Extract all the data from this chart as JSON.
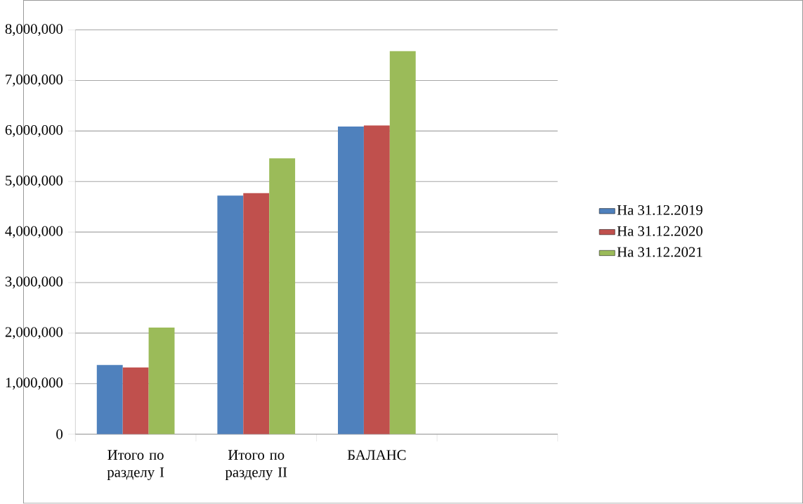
{
  "chart_data": {
    "type": "bar",
    "categories": [
      "Итого по разделу I",
      "Итого по разделу II",
      "БАЛАНС",
      null
    ],
    "series": [
      {
        "name": "На 31.12.2019",
        "color": "#4f81bd",
        "values": [
          1370000,
          4720000,
          6090000,
          null
        ]
      },
      {
        "name": "На 31.12.2020",
        "color": "#c0504d",
        "values": [
          1320000,
          4770000,
          6110000,
          null
        ]
      },
      {
        "name": "На 31.12.2021",
        "color": "#9bbb59",
        "values": [
          2110000,
          5460000,
          7580000,
          null
        ]
      }
    ],
    "ylim": [
      0,
      8000000
    ],
    "yticks": [
      {
        "value": 0,
        "label": "0"
      },
      {
        "value": 1000000,
        "label": "1,000,000"
      },
      {
        "value": 2000000,
        "label": "2,000,000"
      },
      {
        "value": 3000000,
        "label": "3,000,000"
      },
      {
        "value": 4000000,
        "label": "4,000,000"
      },
      {
        "value": 5000000,
        "label": "5,000,000"
      },
      {
        "value": 6000000,
        "label": "6,000,000"
      },
      {
        "value": 7000000,
        "label": "7,000,000"
      },
      {
        "value": 8000000,
        "label": "8,000,000"
      }
    ],
    "grid": "y",
    "legend": "right"
  }
}
